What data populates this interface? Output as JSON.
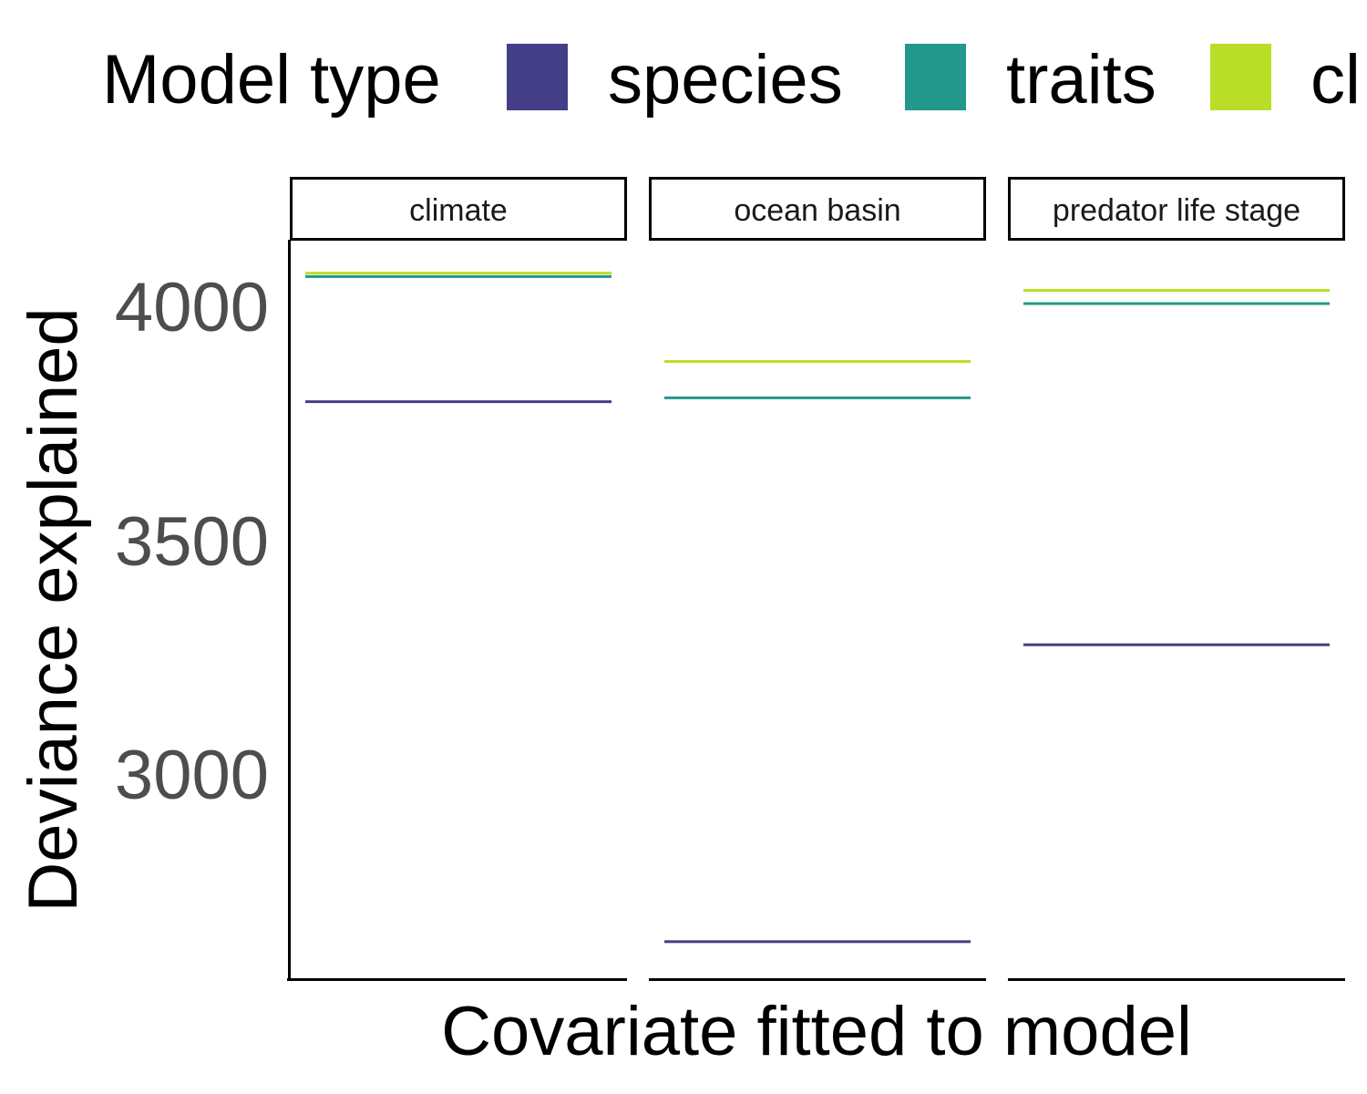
{
  "chart_data": {
    "type": "line",
    "legend": {
      "title": "Model type",
      "position": "top",
      "entries": [
        {
          "label": "species",
          "color": "#433E85"
        },
        {
          "label": "traits",
          "color": "#21988B"
        },
        {
          "label": "cl",
          "color": "#BADE28"
        }
      ]
    },
    "xlabel": "Covariate fitted to model",
    "ylabel": "Deviance explained",
    "ylim": [
      2620,
      4130
    ],
    "yticks": [
      "3000",
      "3500",
      "4000"
    ],
    "grid": false,
    "panels": [
      {
        "label": "climate",
        "series": [
          {
            "model": "species",
            "value": 3800
          },
          {
            "model": "traits",
            "value": 4055
          },
          {
            "model": "cl",
            "value": 4062
          }
        ]
      },
      {
        "label": "ocean basin",
        "series": [
          {
            "model": "species",
            "value": 2700
          },
          {
            "model": "traits",
            "value": 3808
          },
          {
            "model": "cl",
            "value": 3882
          }
        ]
      },
      {
        "label": "predator life stage",
        "series": [
          {
            "model": "species",
            "value": 3305
          },
          {
            "model": "traits",
            "value": 4000
          },
          {
            "model": "cl",
            "value": 4027
          }
        ]
      }
    ]
  }
}
